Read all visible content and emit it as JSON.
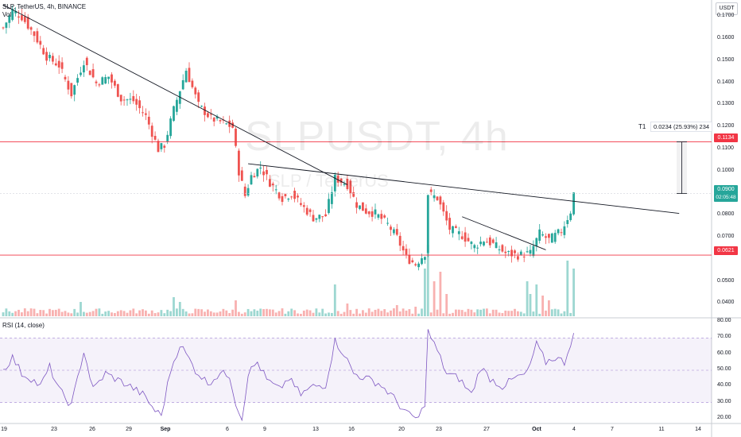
{
  "header": {
    "symbol_line": "SLP, TetherUS, 4h, BINANCE",
    "vol_label": "Vol"
  },
  "watermark": {
    "main": "SLPUSDT, 4h",
    "sub": "SLP / TetherUS"
  },
  "currency_button": "USDT",
  "rsi_label": "RSI (14, close)",
  "colors": {
    "up": "#26a69a",
    "down": "#ef5350",
    "rsi": "#7e57c2",
    "trend": "#131722",
    "hline": "#f23645"
  },
  "price_axis": [
    "0.1700",
    "0.1600",
    "0.1500",
    "0.1400",
    "0.1300",
    "0.1200",
    "0.1100",
    "0.1000",
    "0.0800",
    "0.0700",
    "0.0500",
    "0.0400"
  ],
  "rsi_axis": [
    "80.00",
    "70.00",
    "60.00",
    "50.00",
    "40.00",
    "30.00",
    "20.00"
  ],
  "time_axis": [
    "19",
    "23",
    "26",
    "29",
    "Sep",
    "6",
    "9",
    "13",
    "16",
    "20",
    "23",
    "27",
    "Oct",
    "4",
    "7",
    "11",
    "14"
  ],
  "tags": {
    "resistance": "0.1134",
    "current": "0.0900",
    "countdown": "02:05:48",
    "support": "0.0621"
  },
  "measure": {
    "label": "T1",
    "text": "0.0234 (25.93%) 234"
  },
  "chart_data": {
    "type": "candlestick",
    "ylim": [
      0.0355,
      0.1755
    ],
    "rsi_range": [
      20,
      80
    ],
    "rsi_bands": [
      30,
      50,
      70
    ],
    "horizontal_levels": [
      0.1134,
      0.0621
    ],
    "current_price": 0.09,
    "trendlines": [
      {
        "x": [
          0,
          111
        ],
        "y": [
          0.1755,
          0.094
        ]
      },
      {
        "x": [
          79,
          218
        ],
        "y": [
          0.1035,
          0.081
        ]
      },
      {
        "x": [
          148,
          175
        ],
        "y": [
          0.0795,
          0.0645
        ]
      }
    ],
    "projection": {
      "from_price": 0.09,
      "to_price": 0.1134,
      "change": 0.0234,
      "percent": 25.93,
      "bars": 234
    },
    "anchors": [
      {
        "i": 0,
        "p": 0.165
      },
      {
        "i": 3,
        "p": 0.173
      },
      {
        "i": 6,
        "p": 0.17
      },
      {
        "i": 10,
        "p": 0.162
      },
      {
        "i": 14,
        "p": 0.152
      },
      {
        "i": 18,
        "p": 0.148
      },
      {
        "i": 22,
        "p": 0.135
      },
      {
        "i": 26,
        "p": 0.15
      },
      {
        "i": 30,
        "p": 0.14
      },
      {
        "i": 34,
        "p": 0.143
      },
      {
        "i": 38,
        "p": 0.133
      },
      {
        "i": 42,
        "p": 0.132
      },
      {
        "i": 46,
        "p": 0.125
      },
      {
        "i": 50,
        "p": 0.11
      },
      {
        "i": 52,
        "p": 0.112
      },
      {
        "i": 55,
        "p": 0.128
      },
      {
        "i": 59,
        "p": 0.146
      },
      {
        "i": 63,
        "p": 0.13
      },
      {
        "i": 67,
        "p": 0.124
      },
      {
        "i": 71,
        "p": 0.122
      },
      {
        "i": 74,
        "p": 0.12
      },
      {
        "i": 76,
        "p": 0.1
      },
      {
        "i": 78,
        "p": 0.089
      },
      {
        "i": 80,
        "p": 0.098
      },
      {
        "i": 83,
        "p": 0.102
      },
      {
        "i": 86,
        "p": 0.095
      },
      {
        "i": 90,
        "p": 0.088
      },
      {
        "i": 93,
        "p": 0.09
      },
      {
        "i": 96,
        "p": 0.085
      },
      {
        "i": 100,
        "p": 0.079
      },
      {
        "i": 104,
        "p": 0.08
      },
      {
        "i": 107,
        "p": 0.097
      },
      {
        "i": 111,
        "p": 0.094
      },
      {
        "i": 114,
        "p": 0.085
      },
      {
        "i": 117,
        "p": 0.082
      },
      {
        "i": 120,
        "p": 0.081
      },
      {
        "i": 124,
        "p": 0.076
      },
      {
        "i": 127,
        "p": 0.07
      },
      {
        "i": 130,
        "p": 0.061
      },
      {
        "i": 133,
        "p": 0.058
      },
      {
        "i": 136,
        "p": 0.063
      },
      {
        "i": 137,
        "p": 0.09
      },
      {
        "i": 140,
        "p": 0.088
      },
      {
        "i": 144,
        "p": 0.074
      },
      {
        "i": 148,
        "p": 0.071
      },
      {
        "i": 152,
        "p": 0.066
      },
      {
        "i": 155,
        "p": 0.069
      },
      {
        "i": 158,
        "p": 0.067
      },
      {
        "i": 162,
        "p": 0.063
      },
      {
        "i": 166,
        "p": 0.062
      },
      {
        "i": 170,
        "p": 0.063
      },
      {
        "i": 173,
        "p": 0.072
      },
      {
        "i": 176,
        "p": 0.069
      },
      {
        "i": 180,
        "p": 0.073
      },
      {
        "i": 183,
        "p": 0.082
      },
      {
        "i": 184,
        "p": 0.09
      }
    ],
    "rsi": [
      {
        "i": 0,
        "v": 50
      },
      {
        "i": 3,
        "v": 58
      },
      {
        "i": 6,
        "v": 48
      },
      {
        "i": 9,
        "v": 45
      },
      {
        "i": 12,
        "v": 40
      },
      {
        "i": 15,
        "v": 52
      },
      {
        "i": 18,
        "v": 38
      },
      {
        "i": 22,
        "v": 28
      },
      {
        "i": 26,
        "v": 62
      },
      {
        "i": 29,
        "v": 38
      },
      {
        "i": 33,
        "v": 48
      },
      {
        "i": 37,
        "v": 44
      },
      {
        "i": 41,
        "v": 40
      },
      {
        "i": 45,
        "v": 35
      },
      {
        "i": 49,
        "v": 25
      },
      {
        "i": 51,
        "v": 22
      },
      {
        "i": 54,
        "v": 50
      },
      {
        "i": 57,
        "v": 66
      },
      {
        "i": 59,
        "v": 60
      },
      {
        "i": 62,
        "v": 50
      },
      {
        "i": 66,
        "v": 42
      },
      {
        "i": 70,
        "v": 48
      },
      {
        "i": 73,
        "v": 47
      },
      {
        "i": 75,
        "v": 30
      },
      {
        "i": 77,
        "v": 20
      },
      {
        "i": 79,
        "v": 48
      },
      {
        "i": 82,
        "v": 55
      },
      {
        "i": 85,
        "v": 44
      },
      {
        "i": 89,
        "v": 38
      },
      {
        "i": 92,
        "v": 45
      },
      {
        "i": 96,
        "v": 35
      },
      {
        "i": 100,
        "v": 40
      },
      {
        "i": 104,
        "v": 41
      },
      {
        "i": 107,
        "v": 68
      },
      {
        "i": 110,
        "v": 60
      },
      {
        "i": 113,
        "v": 48
      },
      {
        "i": 117,
        "v": 45
      },
      {
        "i": 121,
        "v": 42
      },
      {
        "i": 125,
        "v": 35
      },
      {
        "i": 128,
        "v": 28
      },
      {
        "i": 131,
        "v": 22
      },
      {
        "i": 134,
        "v": 20
      },
      {
        "i": 136,
        "v": 30
      },
      {
        "i": 137,
        "v": 74
      },
      {
        "i": 140,
        "v": 62
      },
      {
        "i": 143,
        "v": 48
      },
      {
        "i": 147,
        "v": 45
      },
      {
        "i": 151,
        "v": 35
      },
      {
        "i": 154,
        "v": 52
      },
      {
        "i": 157,
        "v": 45
      },
      {
        "i": 161,
        "v": 40
      },
      {
        "i": 165,
        "v": 45
      },
      {
        "i": 169,
        "v": 48
      },
      {
        "i": 172,
        "v": 66
      },
      {
        "i": 175,
        "v": 55
      },
      {
        "i": 178,
        "v": 58
      },
      {
        "i": 181,
        "v": 55
      },
      {
        "i": 184,
        "v": 73
      }
    ],
    "volume_spikes": [
      {
        "i": 25,
        "v": 0.9
      },
      {
        "i": 55,
        "v": 1.2
      },
      {
        "i": 57,
        "v": 0.9
      },
      {
        "i": 75,
        "v": 1.0
      },
      {
        "i": 107,
        "v": 2.0
      },
      {
        "i": 111,
        "v": 0.8
      },
      {
        "i": 127,
        "v": 0.7
      },
      {
        "i": 133,
        "v": 0.6
      },
      {
        "i": 136,
        "v": 3.0
      },
      {
        "i": 137,
        "v": 4.5
      },
      {
        "i": 139,
        "v": 2.2
      },
      {
        "i": 141,
        "v": 2.8
      },
      {
        "i": 143,
        "v": 1.4
      },
      {
        "i": 169,
        "v": 2.2
      },
      {
        "i": 170,
        "v": 1.4
      },
      {
        "i": 172,
        "v": 2.0
      },
      {
        "i": 174,
        "v": 1.3
      },
      {
        "i": 176,
        "v": 1.0
      },
      {
        "i": 182,
        "v": 3.5
      },
      {
        "i": 184,
        "v": 3.0
      }
    ]
  }
}
